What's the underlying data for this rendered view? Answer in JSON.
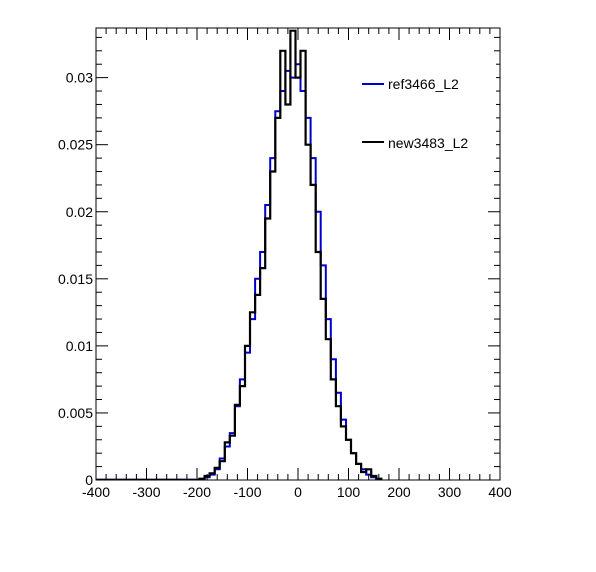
{
  "chart_data": {
    "type": "line",
    "style": "step-histogram",
    "title": "",
    "xlabel": "",
    "ylabel": "",
    "xlim": [
      -400,
      400
    ],
    "ylim": [
      0,
      0.0337
    ],
    "x_ticks": [
      -400,
      -300,
      -200,
      -100,
      0,
      100,
      200,
      300,
      400
    ],
    "x_tick_labels": [
      "-400",
      "-300",
      "-200",
      "-100",
      "0",
      "100",
      "200",
      "300",
      "400"
    ],
    "y_ticks": [
      0,
      0.005,
      0.01,
      0.015,
      0.02,
      0.025,
      0.03
    ],
    "y_tick_labels": [
      "0",
      "0.005",
      "0.01",
      "0.015",
      "0.02",
      "0.025",
      "0.03"
    ],
    "grid": false,
    "legend_position": "top-right",
    "series": [
      {
        "name": "ref3466_L2",
        "color": "#0000cc",
        "x": [
          -180,
          -170,
          -160,
          -150,
          -140,
          -130,
          -120,
          -110,
          -100,
          -90,
          -80,
          -70,
          -60,
          -50,
          -40,
          -30,
          -20,
          -10,
          0,
          10,
          20,
          30,
          40,
          50,
          60,
          70,
          80,
          90,
          100,
          110,
          120,
          130,
          140,
          150
        ],
        "values": [
          0.0002,
          0.0004,
          0.0008,
          0.0016,
          0.0025,
          0.0035,
          0.0055,
          0.0075,
          0.0095,
          0.012,
          0.015,
          0.017,
          0.0205,
          0.024,
          0.0275,
          0.029,
          0.0305,
          0.03,
          0.031,
          0.029,
          0.027,
          0.024,
          0.02,
          0.016,
          0.012,
          0.009,
          0.0065,
          0.0045,
          0.003,
          0.002,
          0.0012,
          0.0008,
          0.0004,
          0.0002
        ]
      },
      {
        "name": "new3483_L2",
        "color": "#000000",
        "x": [
          -190,
          -180,
          -170,
          -160,
          -150,
          -140,
          -130,
          -120,
          -110,
          -100,
          -90,
          -80,
          -70,
          -60,
          -50,
          -40,
          -30,
          -20,
          -10,
          0,
          10,
          20,
          30,
          40,
          50,
          60,
          70,
          80,
          90,
          100,
          110,
          120,
          130,
          140,
          150,
          160
        ],
        "values": [
          0.0001,
          0.0003,
          0.0005,
          0.0009,
          0.0014,
          0.0028,
          0.0033,
          0.0056,
          0.007,
          0.01,
          0.0125,
          0.0138,
          0.0158,
          0.0195,
          0.023,
          0.027,
          0.032,
          0.028,
          0.0335,
          0.03,
          0.032,
          0.025,
          0.022,
          0.017,
          0.0135,
          0.0105,
          0.0075,
          0.0055,
          0.004,
          0.003,
          0.002,
          0.0012,
          0.0006,
          0.0008,
          0.0003,
          0.0001
        ]
      }
    ]
  }
}
